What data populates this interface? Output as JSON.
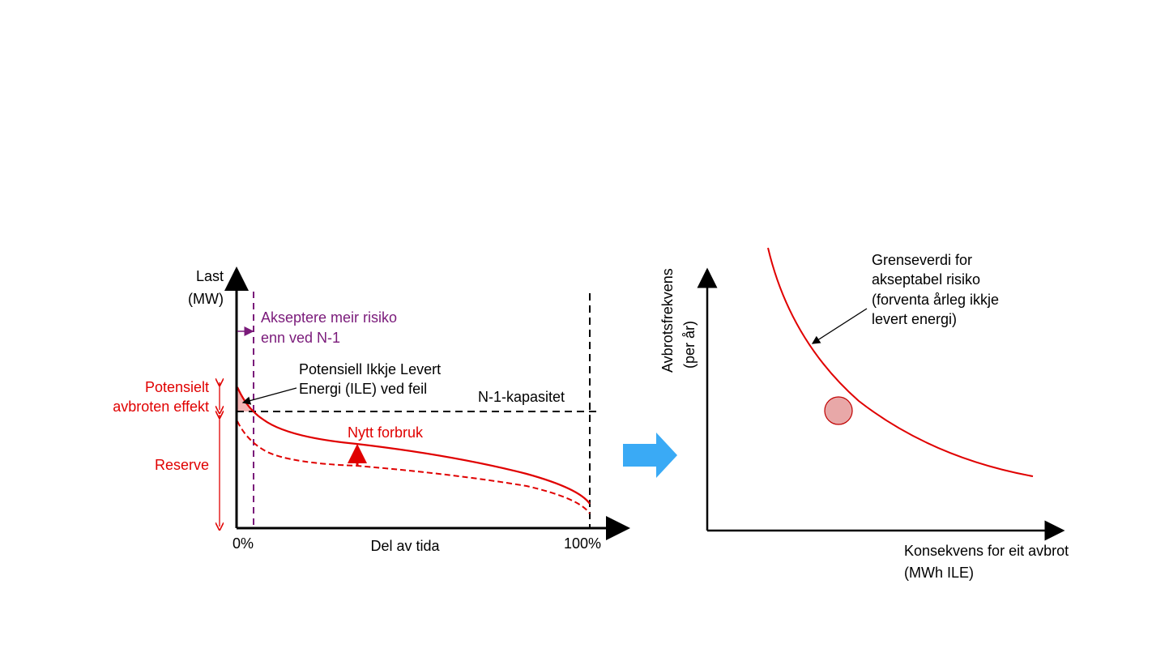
{
  "left_chart": {
    "y_axis_label": [
      "Last",
      "(MW)"
    ],
    "x_axis_label": "Del av tida",
    "x_tick_start": "0%",
    "x_tick_end": "100%",
    "risk_note": [
      "Akseptere meir risiko",
      "enn ved N-1"
    ],
    "ile_note": [
      "Potensiell Ikkje Levert",
      "Energi (ILE) ved feil"
    ],
    "capacity_label": "N-1-kapasitet",
    "new_consumption_label": "Nytt forbruk",
    "interrupted_power_label": [
      "Potensielt",
      "avbroten effekt"
    ],
    "reserve_label": "Reserve"
  },
  "right_chart": {
    "y_axis_label": [
      "Avbrotsfrekvens",
      "(per år)"
    ],
    "x_axis_label": [
      "Konsekvens for eit avbrot",
      "(MWh ILE)"
    ],
    "limit_note": [
      "Grenseverdi for",
      "akseptabel risiko",
      "(forventa årleg ikkje",
      "levert energi)"
    ]
  },
  "colors": {
    "red": "#e00000",
    "purple": "#7a1a7a",
    "arrow_blue": "#3aaaf5",
    "point_fill": "#e8a8a8"
  }
}
